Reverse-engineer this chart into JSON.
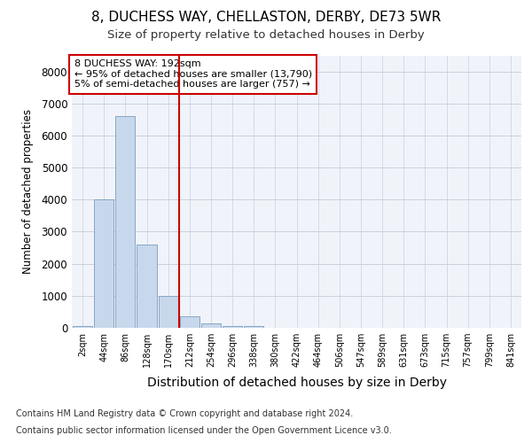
{
  "title1": "8, DUCHESS WAY, CHELLASTON, DERBY, DE73 5WR",
  "title2": "Size of property relative to detached houses in Derby",
  "xlabel": "Distribution of detached houses by size in Derby",
  "ylabel": "Number of detached properties",
  "bar_labels": [
    "2sqm",
    "44sqm",
    "86sqm",
    "128sqm",
    "170sqm",
    "212sqm",
    "254sqm",
    "296sqm",
    "338sqm",
    "380sqm",
    "422sqm",
    "464sqm",
    "506sqm",
    "547sqm",
    "589sqm",
    "631sqm",
    "673sqm",
    "715sqm",
    "757sqm",
    "799sqm",
    "841sqm"
  ],
  "bar_values": [
    50,
    4000,
    6600,
    2600,
    1000,
    350,
    150,
    50,
    50,
    0,
    0,
    0,
    0,
    0,
    0,
    0,
    0,
    0,
    0,
    0,
    0
  ],
  "bar_color": "#c8d8ec",
  "bar_edge_color": "#7a9dbf",
  "vline_color": "#cc0000",
  "vline_x": 5,
  "annotation_text1": "8 DUCHESS WAY: 192sqm",
  "annotation_text2": "← 95% of detached houses are smaller (13,790)",
  "annotation_text3": "5% of semi-detached houses are larger (757) →",
  "ylim": [
    0,
    8500
  ],
  "yticks": [
    0,
    1000,
    2000,
    3000,
    4000,
    5000,
    6000,
    7000,
    8000
  ],
  "footnote1": "Contains HM Land Registry data © Crown copyright and database right 2024.",
  "footnote2": "Contains public sector information licensed under the Open Government Licence v3.0.",
  "bg_color": "#ffffff",
  "plot_bg_color": "#f0f4fa"
}
